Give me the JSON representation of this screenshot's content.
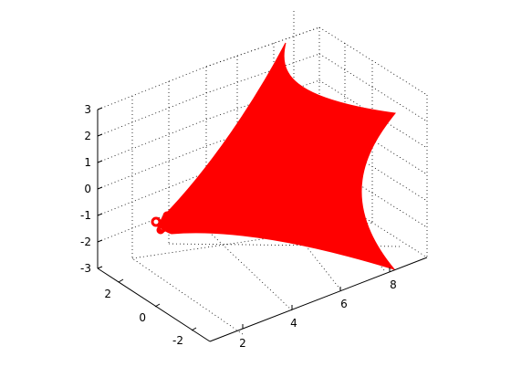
{
  "chart_data": {
    "type": "surface3d",
    "title": "",
    "xlabel": "",
    "ylabel": "",
    "zlabel": "",
    "x_ticks": [
      "2",
      "4",
      "6",
      "8"
    ],
    "y_ticks": [
      "-2",
      "0",
      "2"
    ],
    "z_ticks": [
      "3",
      "2",
      "1",
      "0",
      "-1",
      "-2",
      "-3"
    ],
    "xlim": [
      1,
      9
    ],
    "ylim": [
      -3,
      3
    ],
    "zlim": [
      -3,
      3
    ],
    "grid": true,
    "surface_color": "#ff0000",
    "surface_description": "Red parametric surface patch; corners approximately at (x≈1, y≈0, z≈-1.5), (x≈9, y≈-3, z≈-3), (x≈8, y≈3, z≈0) and (x≈5, y≈3, z≈3)"
  }
}
